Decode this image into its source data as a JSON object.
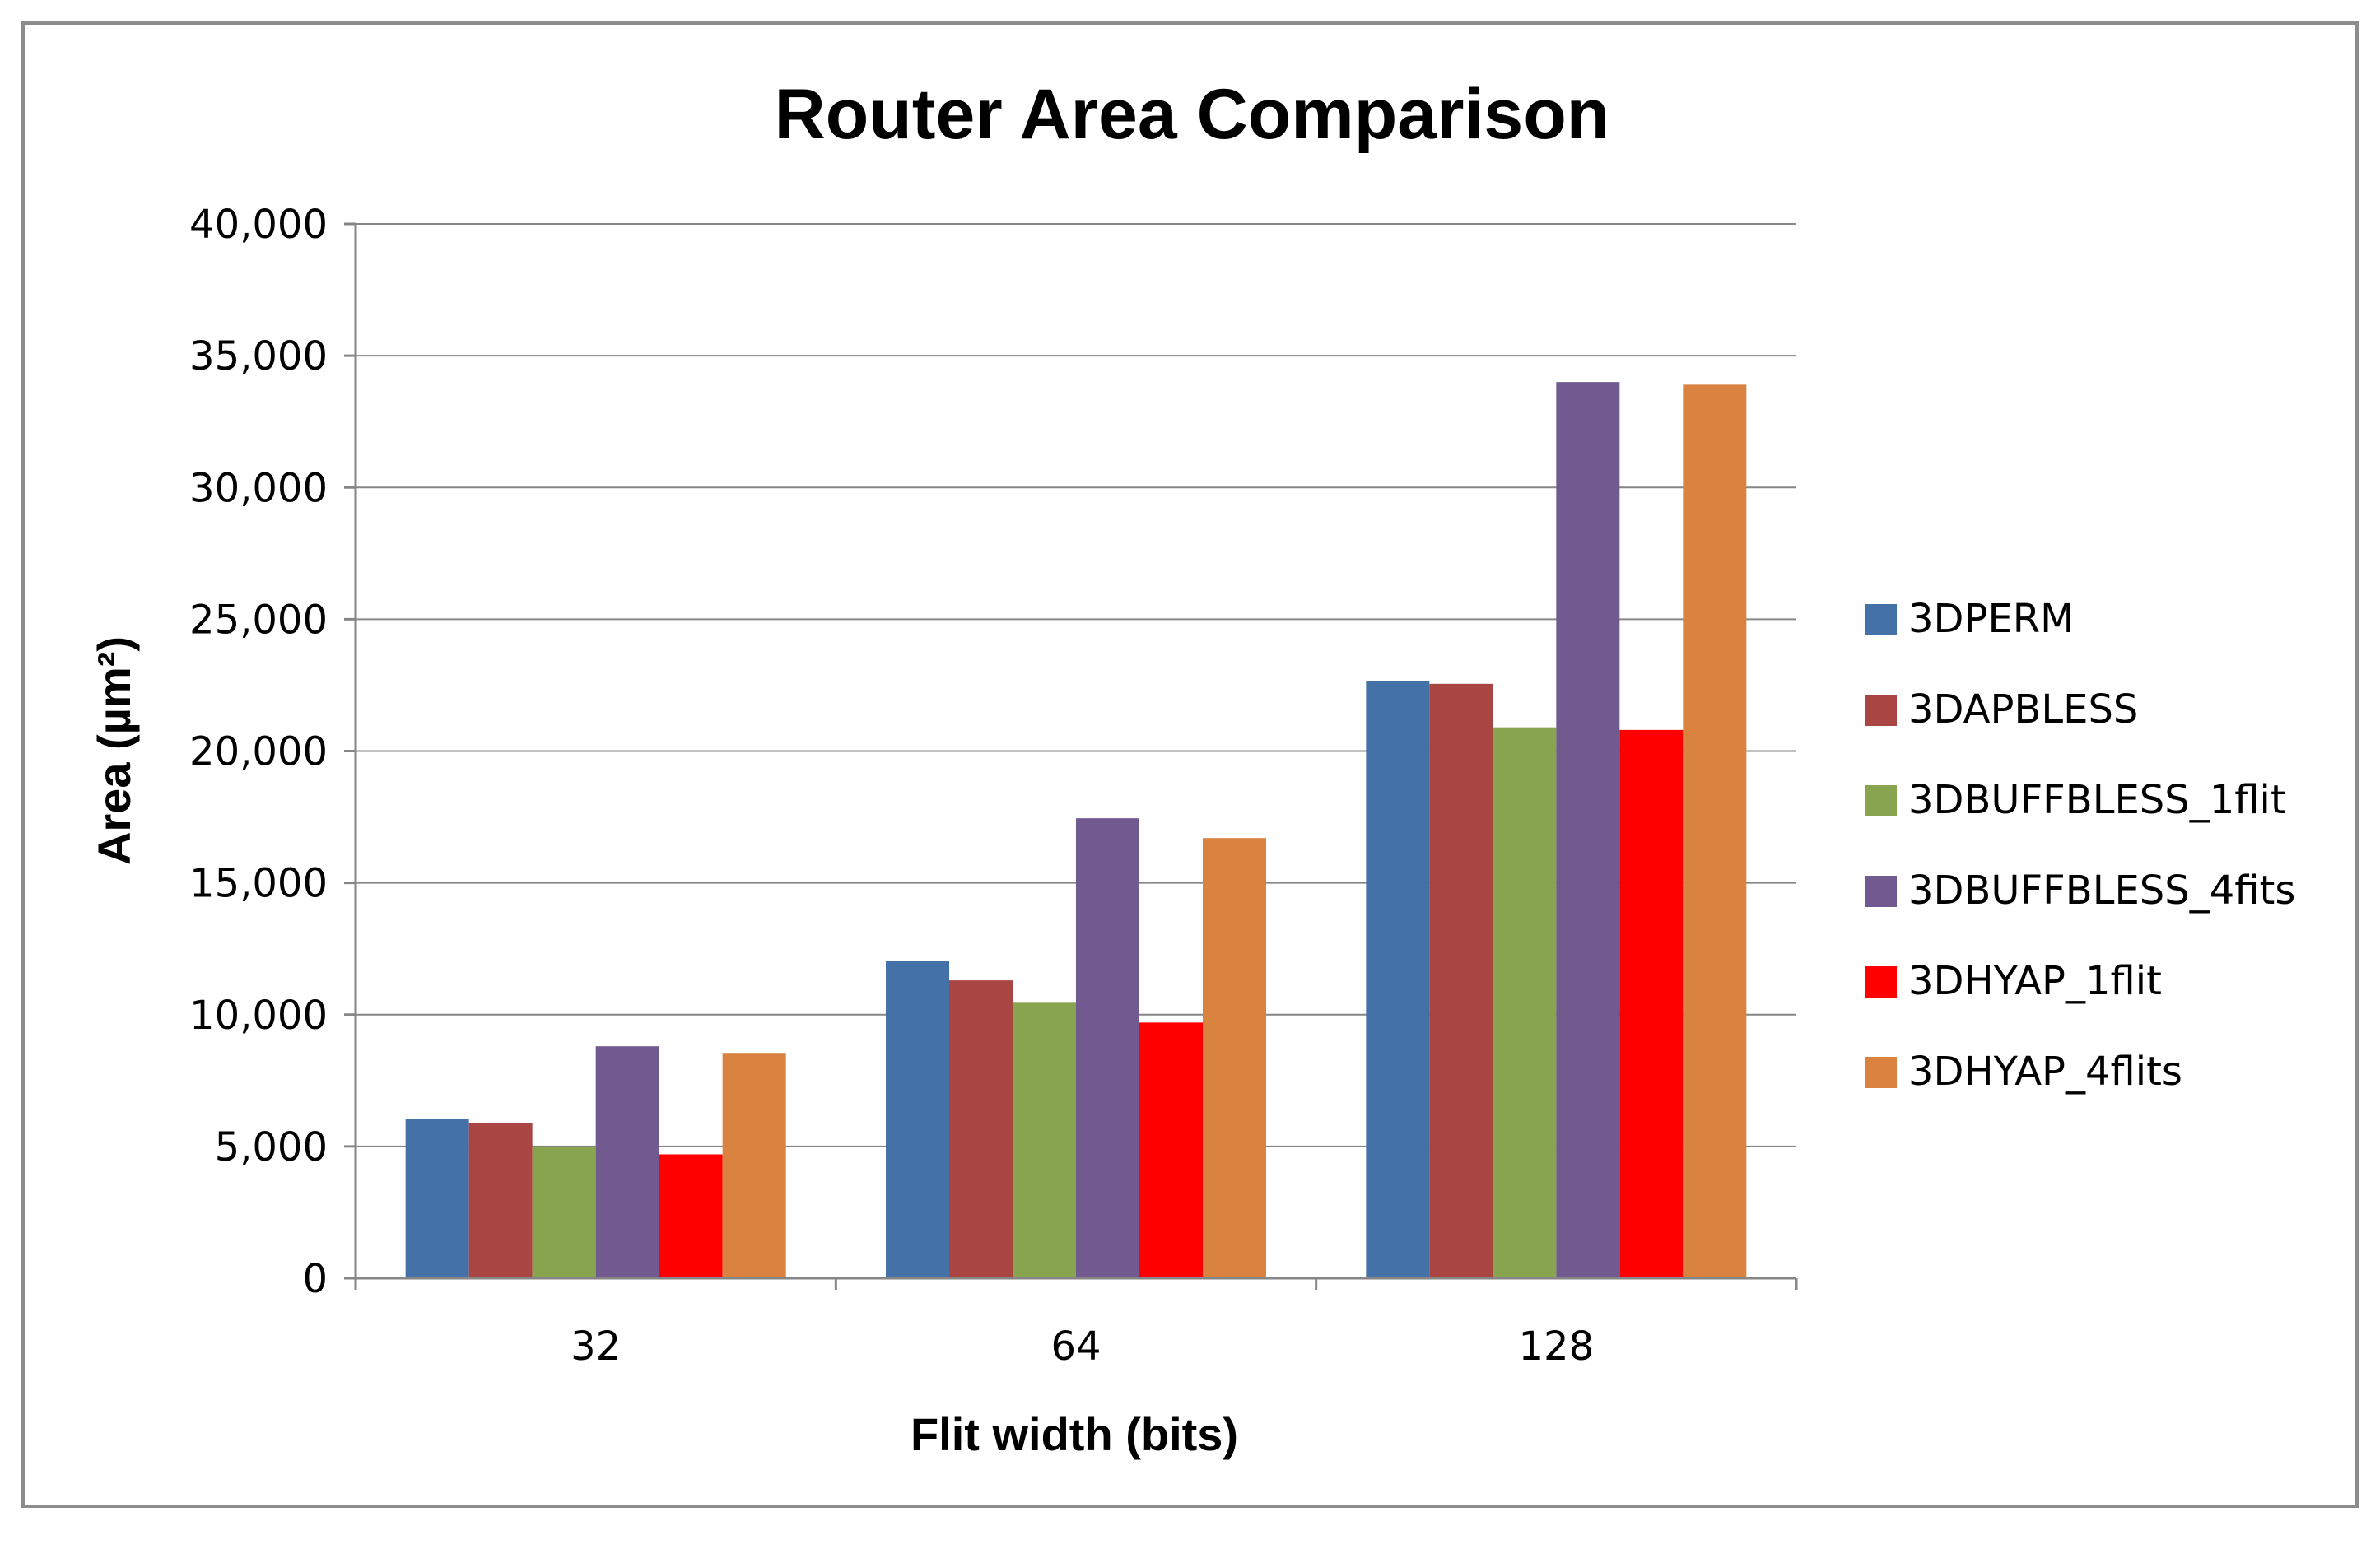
{
  "chart_data": {
    "type": "bar",
    "title": "Router Area Comparison",
    "xlabel": "Flit width (bits)",
    "ylabel": "Area (µm²)",
    "categories": [
      "32",
      "64",
      "128"
    ],
    "ylim": [
      0,
      40000
    ],
    "yticks": [
      0,
      5000,
      10000,
      15000,
      20000,
      25000,
      30000,
      35000,
      40000
    ],
    "ytick_labels": [
      "0",
      "5,000",
      "10,000",
      "15,000",
      "20,000",
      "25,000",
      "30,000",
      "35,000",
      "40,000"
    ],
    "grid": true,
    "legend_position": "right",
    "series": [
      {
        "name": "3DPERM",
        "color": "#4472a8",
        "values": [
          6050,
          12050,
          22650
        ]
      },
      {
        "name": "3DAPBLESS",
        "color": "#a94643",
        "values": [
          5900,
          11300,
          22550
        ]
      },
      {
        "name": "3DBUFFBLESS_1flit",
        "color": "#88a44e",
        "values": [
          5000,
          10450,
          20900
        ]
      },
      {
        "name": "3DBUFFBLESS_4fits",
        "color": "#715a8f",
        "values": [
          8800,
          17450,
          34000
        ]
      },
      {
        "name": "3DHYAP_1flit",
        "color": "#ff0000",
        "values": [
          4700,
          9700,
          20800
        ]
      },
      {
        "name": "3DHYAP_4flits",
        "color": "#da8340",
        "values": [
          8550,
          16700,
          33900
        ]
      }
    ]
  }
}
